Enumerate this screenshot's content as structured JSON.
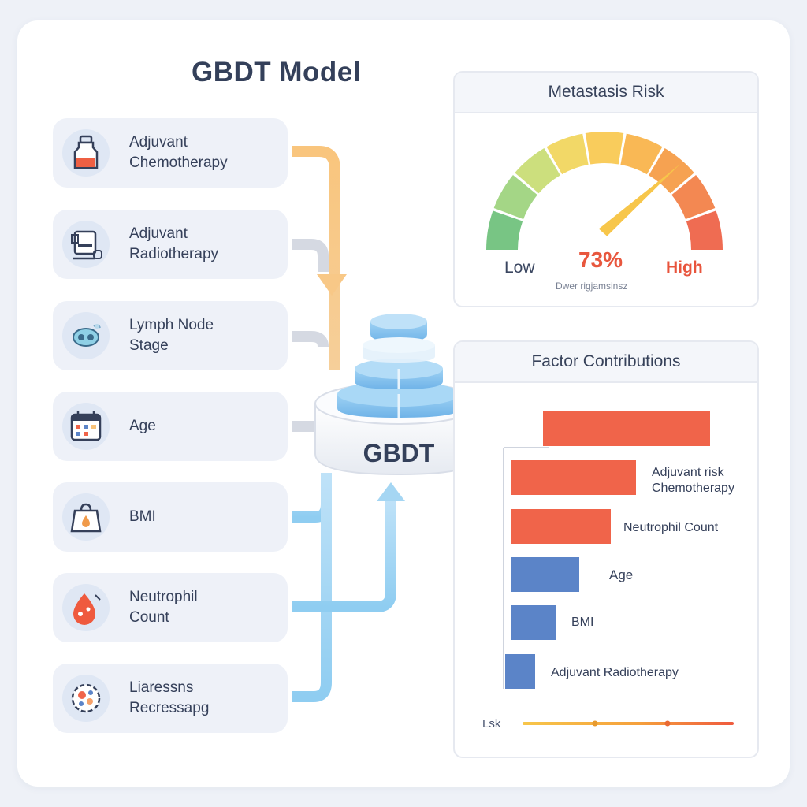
{
  "title": "GBDT Model",
  "model_label": "GBDT",
  "factors": [
    {
      "line1": "Adjuvant",
      "line2": "Chemotherapy",
      "icon": "bottle-icon"
    },
    {
      "line1": "Adjuvant",
      "line2": "Radiotherapy",
      "icon": "radiotherapy-machine-icon"
    },
    {
      "line1": "Lymph Node",
      "line2": "Stage",
      "icon": "lymph-node-icon"
    },
    {
      "line1": "Age",
      "line2": "",
      "icon": "calendar-icon"
    },
    {
      "line1": "BMI",
      "line2": "",
      "icon": "scale-icon"
    },
    {
      "line1": "Neutrophil",
      "line2": "Count",
      "icon": "blood-drop-icon"
    },
    {
      "line1": "Liaressns",
      "line2": "Recressapg",
      "icon": "cells-icon"
    }
  ],
  "risk_panel": {
    "title": "Metastasis Risk",
    "value_text": "73%",
    "value": 73,
    "low_label": "Low",
    "high_label": "High",
    "sub_label": "Dwer rigjamsinsz"
  },
  "contrib_panel": {
    "title": "Factor Contributions",
    "labels": [
      {
        "line1": "Adjuvant risk",
        "line2": "Chemotherapy"
      },
      {
        "line1": "Neutrophil Count",
        "line2": ""
      },
      {
        "line1": "Age",
        "line2": ""
      },
      {
        "line1": "BMI",
        "line2": ""
      },
      {
        "line1": "Adjuvant Radiotherapy",
        "line2": ""
      }
    ],
    "legend_label": "Lsk"
  },
  "colors": {
    "orange_flow": "#f7c27a",
    "blue_flow": "#a9d7f4",
    "red_bar": "#f0644a",
    "blue_bar": "#5b84c8"
  }
}
